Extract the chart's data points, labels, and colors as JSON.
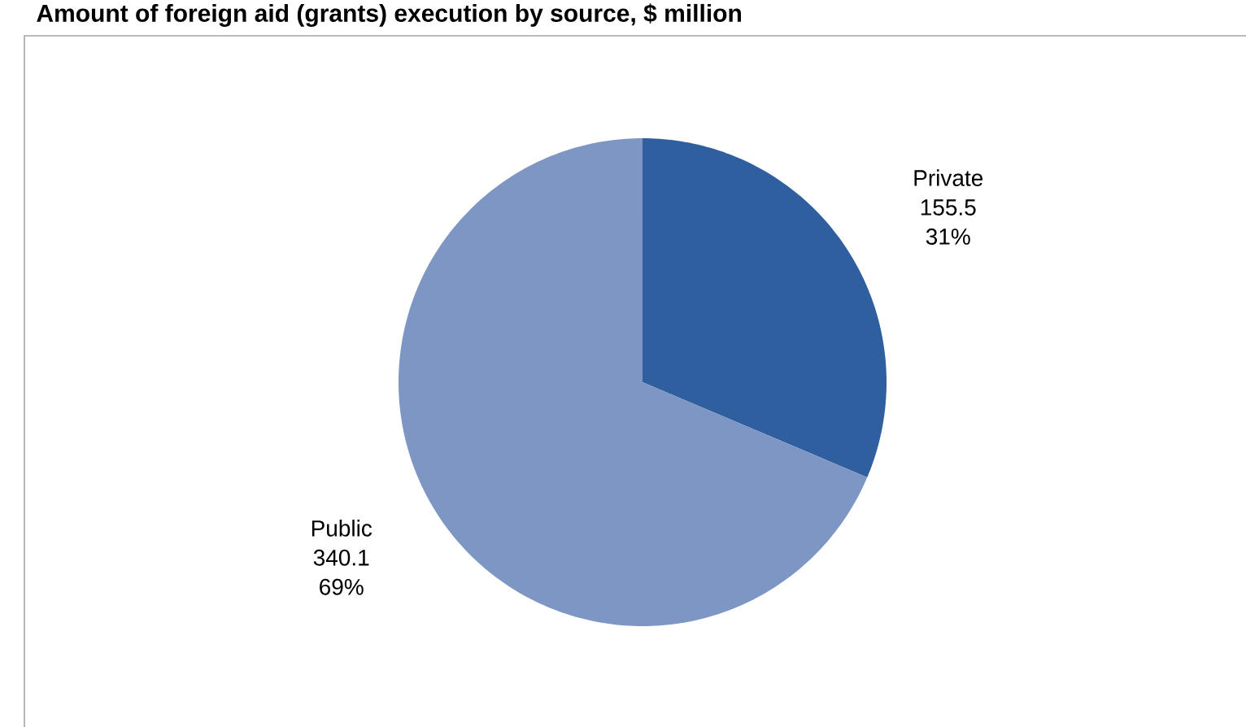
{
  "chart_data": {
    "type": "pie",
    "title": "Amount of foreign aid (grants) execution by source, $ million",
    "categories": [
      "Private",
      "Public"
    ],
    "values": [
      155.5,
      340.1
    ],
    "colors": [
      "#2f5f9f",
      "#7d96c4"
    ],
    "data_labels": true,
    "value_labels": [
      "155.5",
      "340.1"
    ],
    "annotations": [
      "31%",
      "69%"
    ]
  }
}
